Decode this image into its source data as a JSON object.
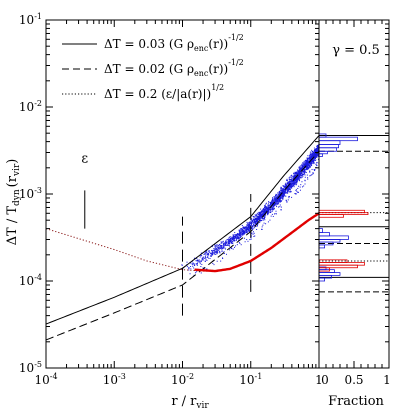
{
  "chart_data": {
    "type": "line",
    "main": {
      "xlabel": "r / r",
      "xlabel_sub": "vir",
      "ylabel": "ΔT / T",
      "ylabel_sub": "dyn",
      "ylabel_tail": "(r",
      "ylabel_tail_sub": "vir",
      "ylabel_close": ")",
      "xscale": "log",
      "yscale": "log",
      "xlim": [
        0.0001,
        1
      ],
      "ylim": [
        1e-05,
        0.1
      ],
      "x_ticks": [
        {
          "value": 0.0001,
          "base": "10",
          "exp": "-4"
        },
        {
          "value": 0.001,
          "base": "10",
          "exp": "-3"
        },
        {
          "value": 0.01,
          "base": "10",
          "exp": "-2"
        },
        {
          "value": 0.1,
          "base": "10",
          "exp": "-1"
        },
        {
          "value": 1,
          "base": "1",
          "exp": ""
        }
      ],
      "y_ticks": [
        {
          "value": 1e-05,
          "base": "10",
          "exp": "-5"
        },
        {
          "value": 0.0001,
          "base": "10",
          "exp": "-4"
        },
        {
          "value": 0.001,
          "base": "10",
          "exp": "-3"
        },
        {
          "value": 0.01,
          "base": "10",
          "exp": "-2"
        },
        {
          "value": 0.1,
          "base": "10",
          "exp": "-1"
        }
      ],
      "series": [
        {
          "name": "solid",
          "style": "solid",
          "color": "#000000",
          "x": [
            0.0001,
            0.001,
            0.01,
            0.1,
            0.3,
            1
          ],
          "y": [
            3.2e-05,
            6.5e-05,
            0.00014,
            0.00055,
            0.0016,
            0.0047
          ]
        },
        {
          "name": "dashed",
          "style": "dashed",
          "color": "#000000",
          "x": [
            0.0001,
            0.001,
            0.01,
            0.1,
            0.3,
            1
          ],
          "y": [
            2.1e-05,
            4.3e-05,
            9e-05,
            0.00037,
            0.00107,
            0.0031
          ]
        },
        {
          "name": "dotted",
          "style": "dotted",
          "color": "#8b1a1a",
          "x": [
            0.0001,
            0.001,
            0.003,
            0.01,
            0.02,
            0.03
          ],
          "y": [
            0.0004,
            0.00023,
            0.00017,
            0.000135,
            0.00013,
            0.00013
          ]
        },
        {
          "name": "red",
          "style": "solid-thick",
          "color": "#e00000",
          "x": [
            0.015,
            0.03,
            0.05,
            0.1,
            0.2,
            0.4,
            0.7,
            1
          ],
          "y": [
            0.000135,
            0.00013,
            0.000138,
            0.00017,
            0.00024,
            0.00036,
            0.0005,
            0.0006
          ]
        }
      ],
      "scatter": {
        "color": "#1a1adc",
        "band_x": [
          0.01,
          0.02,
          0.05,
          0.1,
          0.2,
          0.5,
          0.8,
          1
        ],
        "band_lo": [
          0.00012,
          0.00015,
          0.00024,
          0.00036,
          0.0006,
          0.0013,
          0.0021,
          0.0027
        ],
        "band_hi": [
          0.00017,
          0.00023,
          0.00036,
          0.00055,
          0.00095,
          0.0022,
          0.0035,
          0.0042
        ],
        "x_range": [
          0.008,
          1
        ]
      },
      "vlines_dashed": [
        {
          "x": 0.01,
          "y_range": [
            4e-05,
            0.00055
          ]
        },
        {
          "x": 0.1,
          "y_range": [
            7.5e-05,
            0.001
          ]
        }
      ],
      "epsilon_bar": {
        "label": "ε",
        "x": 0.00037,
        "y_range": [
          0.0004,
          0.0011
        ],
        "label_y": 0.0023
      },
      "legend": [
        {
          "style": "solid",
          "parts": [
            [
              "ΔT = 0.03 (G ρ",
              ""
            ],
            [
              "enc",
              "sub"
            ],
            [
              "(r))",
              ""
            ],
            [
              "-1/2",
              "sup"
            ]
          ]
        },
        {
          "style": "dashed",
          "parts": [
            [
              "ΔT = 0.02 (G ρ",
              ""
            ],
            [
              "enc",
              "sub"
            ],
            [
              "(r))",
              ""
            ],
            [
              "-1/2",
              "sup"
            ]
          ]
        },
        {
          "style": "dotted",
          "parts": [
            [
              "ΔT = 0.2 (ε/|a(r)|)",
              ""
            ],
            [
              "1/2",
              "sup"
            ]
          ]
        }
      ]
    },
    "side": {
      "title": "γ = 0.5",
      "xlabel": "Fraction",
      "xlim": [
        0,
        1
      ],
      "x_ticks": [
        {
          "value": 0,
          "label": "0"
        },
        {
          "value": 0.5,
          "label": "0.5"
        },
        {
          "value": 1,
          "label": "1"
        }
      ],
      "hlines_solid": [
        0.0047,
        0.00042,
        0.00011
      ],
      "hlines_dashed": [
        0.0031,
        0.00027,
        7.5e-05
      ],
      "hlines_dotted": [
        0.00061,
        0.00017
      ],
      "hist_blue": {
        "color": "#1a1adc",
        "bins": [
          [
            0.0027,
            0.0029,
            0.05
          ],
          [
            0.0029,
            0.0031,
            0.12
          ],
          [
            0.0031,
            0.0034,
            0.25
          ],
          [
            0.0034,
            0.0037,
            0.28
          ],
          [
            0.0037,
            0.0041,
            0.3
          ],
          [
            0.0041,
            0.0045,
            0.55
          ],
          [
            0.0045,
            0.0049,
            0.1
          ],
          [
            0.00024,
            0.00026,
            0.08
          ],
          [
            0.00026,
            0.00028,
            0.2
          ],
          [
            0.00028,
            0.0003,
            0.3
          ],
          [
            0.0003,
            0.00033,
            0.42
          ],
          [
            0.00033,
            0.00036,
            0.15
          ],
          [
            0.00036,
            0.0004,
            0.05
          ],
          [
            0.0001,
            0.000108,
            0.08
          ],
          [
            0.000108,
            0.000116,
            0.18
          ],
          [
            0.000116,
            0.000125,
            0.3
          ],
          [
            0.000125,
            0.000135,
            0.22
          ],
          [
            0.000135,
            0.000145,
            0.1
          ]
        ]
      },
      "hist_red": {
        "color": "#e00000",
        "bins": [
          [
            0.00054,
            0.00058,
            0.35
          ],
          [
            0.00058,
            0.00061,
            0.7
          ],
          [
            0.00061,
            0.00065,
            0.65
          ],
          [
            0.00013,
            0.000142,
            0.15
          ],
          [
            0.000142,
            0.000152,
            0.55
          ],
          [
            0.000152,
            0.000163,
            0.65
          ],
          [
            0.000163,
            0.000175,
            0.4
          ]
        ]
      }
    }
  }
}
